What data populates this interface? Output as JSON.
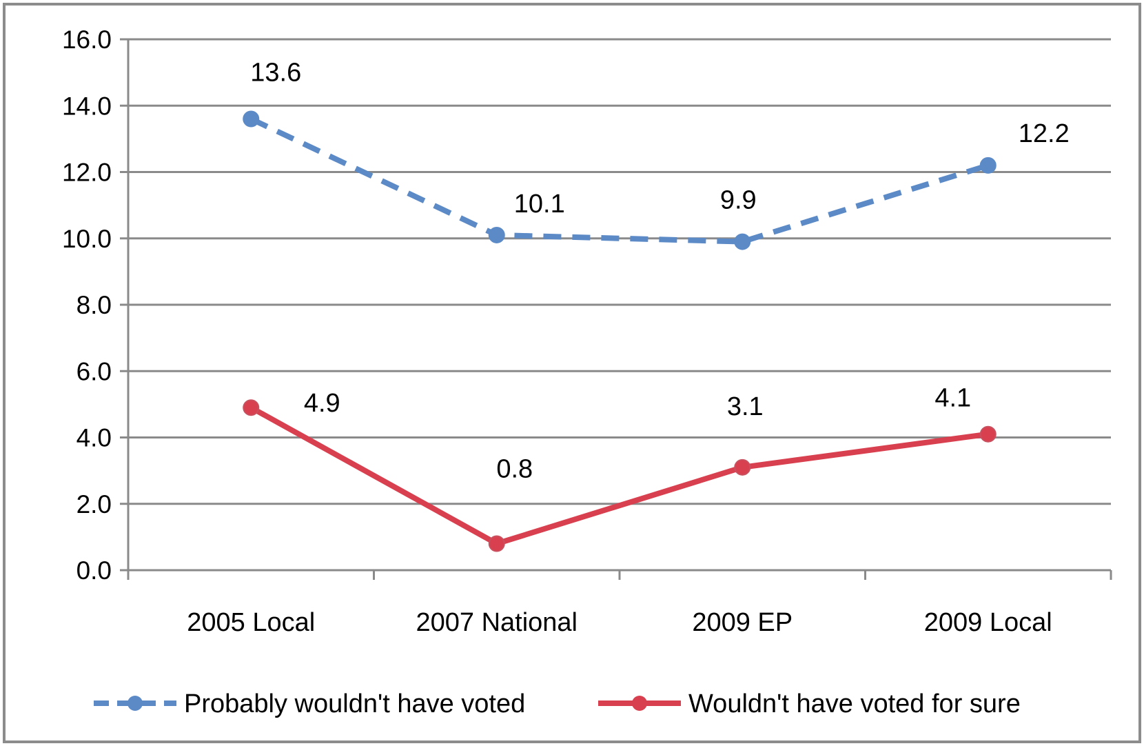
{
  "chart_data": {
    "type": "line",
    "categories": [
      "2005 Local",
      "2007 National",
      "2009 EP",
      "2009 Local"
    ],
    "ylim": [
      0,
      16
    ],
    "yticks": [
      "0.0",
      "2.0",
      "4.0",
      "6.0",
      "8.0",
      "10.0",
      "12.0",
      "14.0",
      "16.0"
    ],
    "grid": true,
    "legend_position": "bottom",
    "series": [
      {
        "name": "Probably wouldn't have voted",
        "values": [
          13.6,
          10.1,
          9.9,
          12.2
        ],
        "labels": [
          "13.6",
          "10.1",
          "9.9",
          "12.2"
        ],
        "color": "#5b8ac7",
        "line_style": "dashed"
      },
      {
        "name": "Wouldn't have voted for sure",
        "values": [
          4.9,
          0.8,
          3.1,
          4.1
        ],
        "labels": [
          "4.9",
          "0.8",
          "3.1",
          "4.1"
        ],
        "color": "#d9404f",
        "line_style": "solid"
      }
    ]
  }
}
